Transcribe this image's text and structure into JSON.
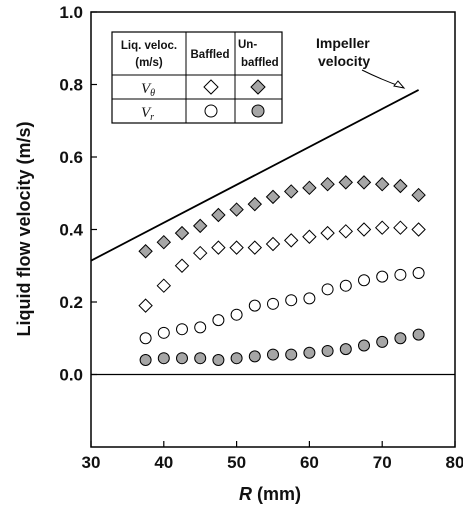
{
  "chart_data": {
    "type": "scatter",
    "title": "",
    "xlabel_symbol": "R",
    "xlabel_unit": "(mm)",
    "ylabel": "Liquid flow velocity (m/s)",
    "xlim": [
      30,
      80
    ],
    "ylim": [
      -0.2,
      1.0
    ],
    "xticks": [
      "30",
      "40",
      "50",
      "60",
      "70",
      "80"
    ],
    "yticks": [
      "0.0",
      "0.2",
      "0.4",
      "0.6",
      "0.8",
      "1.0"
    ],
    "grid": false,
    "legend_placement": "top-left",
    "legend": {
      "header_label": "Liq. veloc. (m/s)",
      "header_label_line1": "Liq. veloc.",
      "header_label_line2": "(m/s)",
      "col_baffled": "Baffled",
      "col_unbaffled_line1": "Un-",
      "col_unbaffled_line2": "baffled",
      "row1_symbol": "V",
      "row1_subscript": "θ",
      "row2_symbol": "V",
      "row2_subscript": "r"
    },
    "annotation": {
      "line1": "Impeller",
      "line2": "velocity"
    },
    "impeller_line": {
      "x": [
        30,
        75
      ],
      "y": [
        0.314,
        0.785
      ]
    },
    "zero_line_y": 0.0,
    "series": [
      {
        "name": "Vθ Baffled",
        "marker": "diamond",
        "fill": "#ffffff",
        "x": [
          37.5,
          40,
          42.5,
          45,
          47.5,
          50,
          52.5,
          55,
          57.5,
          60,
          62.5,
          65,
          67.5,
          70,
          72.5,
          75
        ],
        "y": [
          0.19,
          0.245,
          0.3,
          0.335,
          0.35,
          0.35,
          0.35,
          0.36,
          0.37,
          0.38,
          0.39,
          0.395,
          0.4,
          0.405,
          0.405,
          0.4
        ]
      },
      {
        "name": "Vθ Un-baffled",
        "marker": "diamond",
        "fill": "#a6a6a6",
        "x": [
          37.5,
          40,
          42.5,
          45,
          47.5,
          50,
          52.5,
          55,
          57.5,
          60,
          62.5,
          65,
          67.5,
          70,
          72.5,
          75
        ],
        "y": [
          0.34,
          0.365,
          0.39,
          0.41,
          0.44,
          0.455,
          0.47,
          0.49,
          0.505,
          0.515,
          0.525,
          0.53,
          0.53,
          0.525,
          0.52,
          0.495
        ]
      },
      {
        "name": "Vr Baffled",
        "marker": "circle",
        "fill": "#ffffff",
        "x": [
          37.5,
          40,
          42.5,
          45,
          47.5,
          50,
          52.5,
          55,
          57.5,
          60,
          62.5,
          65,
          67.5,
          70,
          72.5,
          75
        ],
        "y": [
          0.1,
          0.115,
          0.125,
          0.13,
          0.15,
          0.165,
          0.19,
          0.195,
          0.205,
          0.21,
          0.235,
          0.245,
          0.26,
          0.27,
          0.275,
          0.28
        ]
      },
      {
        "name": "Vr Un-baffled",
        "marker": "circle",
        "fill": "#a6a6a6",
        "x": [
          37.5,
          40,
          42.5,
          45,
          47.5,
          50,
          52.5,
          55,
          57.5,
          60,
          62.5,
          65,
          67.5,
          70,
          72.5,
          75
        ],
        "y": [
          0.04,
          0.045,
          0.045,
          0.045,
          0.04,
          0.045,
          0.05,
          0.055,
          0.055,
          0.06,
          0.065,
          0.07,
          0.08,
          0.09,
          0.1,
          0.11
        ]
      }
    ]
  }
}
